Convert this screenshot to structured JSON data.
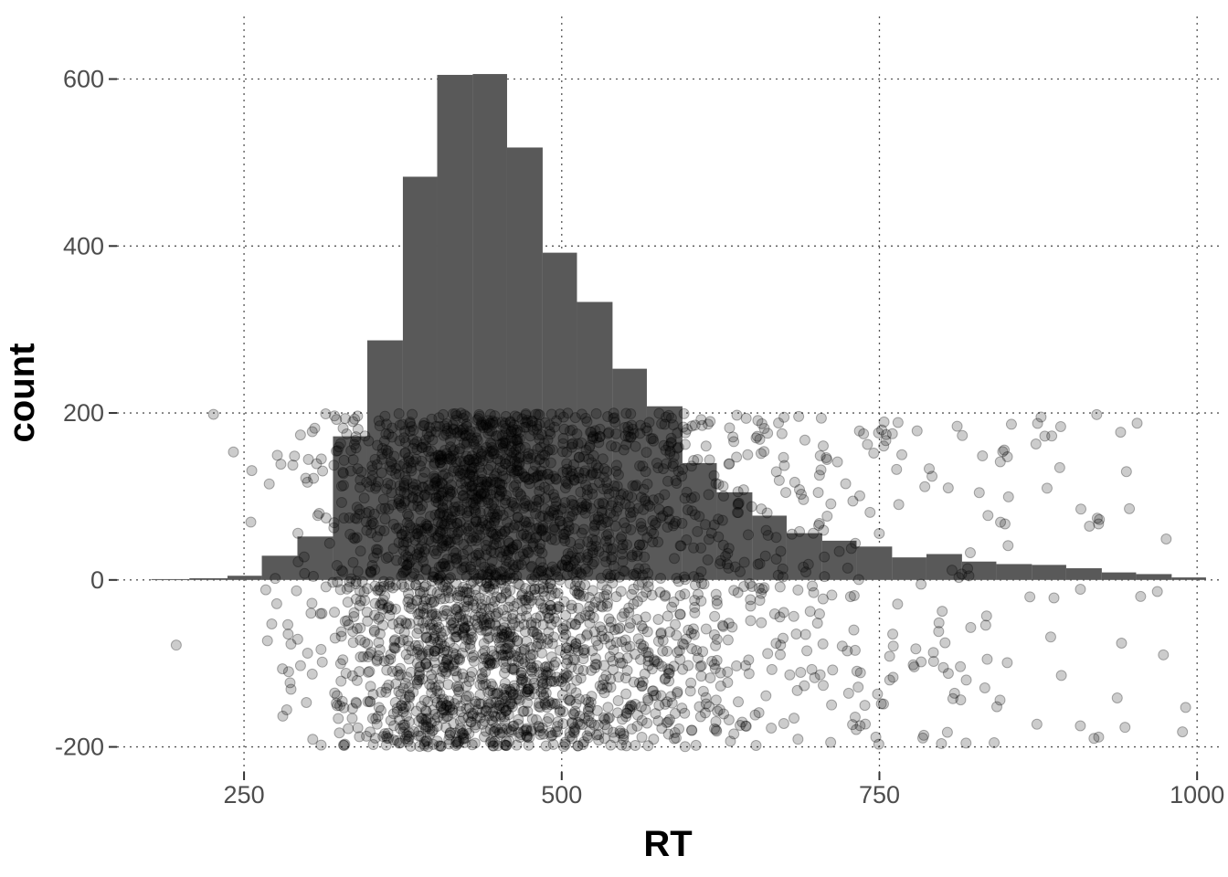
{
  "chart_data": {
    "type": "bar",
    "subtype": "histogram-with-jittered-points",
    "xlabel": "RT",
    "ylabel": "count",
    "xlim": [
      150,
      1020
    ],
    "ylim": [
      -230,
      675
    ],
    "x_ticks": [
      250,
      500,
      750,
      1000
    ],
    "x_tick_labels": [
      "250",
      "500",
      "750",
      "1000"
    ],
    "y_ticks": [
      -200,
      0,
      200,
      400,
      600
    ],
    "y_tick_labels": [
      "-200",
      "0",
      "200",
      "400",
      "600"
    ],
    "grid": "major dotted lines",
    "legend": "none",
    "bar_color": "#595959",
    "point_color": "#000000",
    "point_opacity": 0.2,
    "bin_width": 27.5,
    "bins": [
      {
        "x0": 177,
        "x1": 207,
        "count": 1
      },
      {
        "x0": 207,
        "x1": 237,
        "count": 2
      },
      {
        "x0": 237,
        "x1": 264,
        "count": 5
      },
      {
        "x0": 264,
        "x1": 292,
        "count": 29
      },
      {
        "x0": 292,
        "x1": 320,
        "count": 52
      },
      {
        "x0": 320,
        "x1": 347,
        "count": 172
      },
      {
        "x0": 347,
        "x1": 375,
        "count": 287
      },
      {
        "x0": 375,
        "x1": 402,
        "count": 483
      },
      {
        "x0": 402,
        "x1": 430,
        "count": 605
      },
      {
        "x0": 430,
        "x1": 457,
        "count": 606
      },
      {
        "x0": 457,
        "x1": 485,
        "count": 518
      },
      {
        "x0": 485,
        "x1": 512,
        "count": 392
      },
      {
        "x0": 512,
        "x1": 540,
        "count": 333
      },
      {
        "x0": 540,
        "x1": 567,
        "count": 253
      },
      {
        "x0": 567,
        "x1": 595,
        "count": 208
      },
      {
        "x0": 595,
        "x1": 622,
        "count": 140
      },
      {
        "x0": 622,
        "x1": 650,
        "count": 105
      },
      {
        "x0": 650,
        "x1": 677,
        "count": 77
      },
      {
        "x0": 677,
        "x1": 705,
        "count": 56
      },
      {
        "x0": 705,
        "x1": 732,
        "count": 47
      },
      {
        "x0": 732,
        "x1": 760,
        "count": 40
      },
      {
        "x0": 760,
        "x1": 787,
        "count": 27
      },
      {
        "x0": 787,
        "x1": 815,
        "count": 31
      },
      {
        "x0": 815,
        "x1": 842,
        "count": 22
      },
      {
        "x0": 842,
        "x1": 870,
        "count": 19
      },
      {
        "x0": 870,
        "x1": 897,
        "count": 18
      },
      {
        "x0": 897,
        "x1": 925,
        "count": 14
      },
      {
        "x0": 925,
        "x1": 952,
        "count": 9
      },
      {
        "x0": 952,
        "x1": 980,
        "count": 7
      },
      {
        "x0": 980,
        "x1": 1007,
        "count": 3
      }
    ],
    "points": {
      "description_of_distribution": "RT values following histogram shape, jittered uniformly in y",
      "count": 3100,
      "y_range": [
        -200,
        200
      ]
    }
  }
}
